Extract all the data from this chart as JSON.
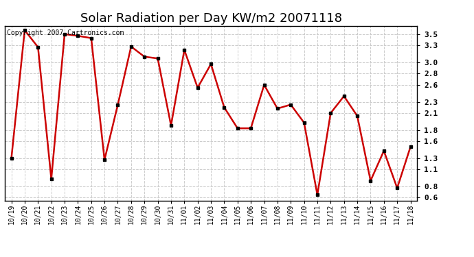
{
  "title": "Solar Radiation per Day KW/m2 20071118",
  "copyright_text": "Copyright 2007 Cartronics.com",
  "dates": [
    "10/19",
    "10/20",
    "10/21",
    "10/22",
    "10/23",
    "10/24",
    "10/25",
    "10/26",
    "10/27",
    "10/28",
    "10/29",
    "10/30",
    "10/31",
    "11/01",
    "11/02",
    "11/03",
    "11/04",
    "11/05",
    "11/06",
    "11/07",
    "11/08",
    "11/09",
    "11/10",
    "11/11",
    "11/12",
    "11/13",
    "11/14",
    "11/15",
    "11/16",
    "11/17",
    "11/18"
  ],
  "values": [
    1.3,
    3.57,
    3.27,
    0.93,
    3.5,
    3.47,
    3.43,
    1.27,
    2.25,
    3.28,
    3.1,
    3.07,
    1.88,
    3.22,
    2.55,
    2.97,
    2.2,
    1.83,
    1.83,
    2.6,
    2.18,
    2.25,
    1.93,
    0.65,
    2.1,
    2.4,
    2.05,
    0.9,
    1.43,
    0.77,
    1.5
  ],
  "line_color": "#cc0000",
  "marker_color": "#000000",
  "bg_color": "#ffffff",
  "grid_color": "#cccccc",
  "ylim": [
    0.55,
    3.65
  ],
  "ytick_positions": [
    0.6,
    0.8,
    1.1,
    1.3,
    1.6,
    1.8,
    2.1,
    2.3,
    2.6,
    2.8,
    3.0,
    3.3,
    3.5
  ],
  "ytick_labels": [
    "0.6",
    "0.8",
    "1.1",
    "1.3",
    "1.6",
    "1.8",
    "2.1",
    "2.3",
    "2.6",
    "2.8",
    "3.0",
    "3.3",
    "3.5"
  ],
  "title_fontsize": 13,
  "copyright_fontsize": 7,
  "tick_fontsize": 8,
  "xtick_fontsize": 7
}
